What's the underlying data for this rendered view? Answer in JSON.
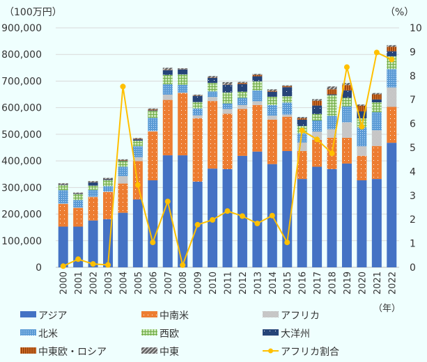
{
  "chart_data": {
    "type": "bar",
    "stacked": true,
    "y_unit_label": "（100万円）",
    "y2_unit_label": "（%）",
    "x_unit_label": "（年）",
    "ylim": [
      0,
      900000
    ],
    "y_ticks": [
      "0",
      "100,000",
      "200,000",
      "300,000",
      "400,000",
      "500,000",
      "600,000",
      "700,000",
      "800,000",
      "900,000"
    ],
    "y2lim": [
      0,
      10
    ],
    "y2_ticks": [
      "0",
      "1",
      "2",
      "3",
      "4",
      "5",
      "6",
      "7",
      "8",
      "9",
      "10"
    ],
    "grid": true,
    "legend_position": "bottom",
    "categories": [
      "2000",
      "2001",
      "2002",
      "2003",
      "2004",
      "2005",
      "2006",
      "2007",
      "2008",
      "2009",
      "2010",
      "2011",
      "2012",
      "2013",
      "2014",
      "2015",
      "2016",
      "2017",
      "2018",
      "2019",
      "2020",
      "2021",
      "2022"
    ],
    "series": [
      {
        "name": "アジア",
        "color": "#4472C4",
        "pattern": "solid",
        "values": [
          153000,
          153000,
          176000,
          181000,
          205000,
          255000,
          327000,
          421000,
          421000,
          322000,
          371000,
          369000,
          419000,
          435000,
          388000,
          437000,
          332000,
          378000,
          369000,
          390000,
          327000,
          332000,
          468000
        ]
      },
      {
        "name": "中南米",
        "color": "#ED7D31",
        "pattern": "dots",
        "values": [
          85000,
          70000,
          88000,
          102000,
          110000,
          144000,
          183000,
          208000,
          234000,
          238000,
          254000,
          208000,
          176000,
          175000,
          167000,
          129000,
          105000,
          101000,
          118000,
          97000,
          92000,
          124000,
          135000
        ]
      },
      {
        "name": "アフリカ",
        "color": "#A5A5A5",
        "pattern": "checker",
        "values": [
          2000,
          2000,
          2000,
          2000,
          28000,
          15000,
          3000,
          20000,
          2000,
          11000,
          15000,
          18000,
          15000,
          14000,
          15000,
          8000,
          32000,
          31000,
          32000,
          58000,
          36000,
          59000,
          73000
        ]
      },
      {
        "name": "北米",
        "color": "#5B9BD5",
        "pattern": "dots",
        "values": [
          50000,
          28000,
          25000,
          20000,
          35000,
          41000,
          49000,
          39000,
          29000,
          26000,
          21000,
          21000,
          27000,
          41000,
          40000,
          45000,
          34000,
          42000,
          50000,
          60000,
          71000,
          68000,
          69000
        ]
      },
      {
        "name": "西欧",
        "color": "#70AD47",
        "pattern": "grid",
        "values": [
          19000,
          22000,
          16000,
          23000,
          21000,
          21000,
          26000,
          35000,
          39000,
          24000,
          32000,
          41000,
          23000,
          34000,
          31000,
          24000,
          28000,
          24000,
          78000,
          32000,
          34000,
          37000,
          48000
        ]
      },
      {
        "name": "大洋州",
        "color": "#264478",
        "pattern": "sparse-dots",
        "values": [
          2000,
          2000,
          12000,
          3000,
          2000,
          5000,
          2000,
          18000,
          19000,
          23000,
          19000,
          29000,
          29000,
          19000,
          19000,
          34000,
          24000,
          32000,
          3000,
          28000,
          26000,
          11000,
          19000
        ]
      },
      {
        "name": "中東欧・ロシア",
        "color": "#9E480E",
        "pattern": "vstripes",
        "values": [
          1000,
          1000,
          1000,
          1000,
          2000,
          2000,
          3000,
          1000,
          1000,
          1000,
          1000,
          1000,
          4000,
          5000,
          3000,
          4000,
          5000,
          18000,
          19000,
          20000,
          21000,
          19000,
          17000
        ]
      },
      {
        "name": "中東",
        "color": "#636363",
        "pattern": "diagonal",
        "values": [
          4000,
          3000,
          4000,
          4000,
          3000,
          3000,
          4000,
          8000,
          3000,
          4000,
          6000,
          9000,
          4000,
          4000,
          6000,
          3000,
          5000,
          6000,
          11000,
          8000,
          5000,
          5000,
          6000
        ]
      }
    ],
    "line_series": {
      "name": "アフリカ割合",
      "color": "#FFC000",
      "axis": "right",
      "values": [
        0.05,
        0.34,
        0.14,
        0.1,
        7.55,
        3.44,
        1.04,
        2.75,
        0.09,
        1.78,
        1.98,
        2.35,
        2.14,
        1.83,
        2.16,
        1.04,
        5.72,
        5.34,
        4.76,
        8.36,
        5.87,
        8.97,
        8.68
      ]
    }
  }
}
